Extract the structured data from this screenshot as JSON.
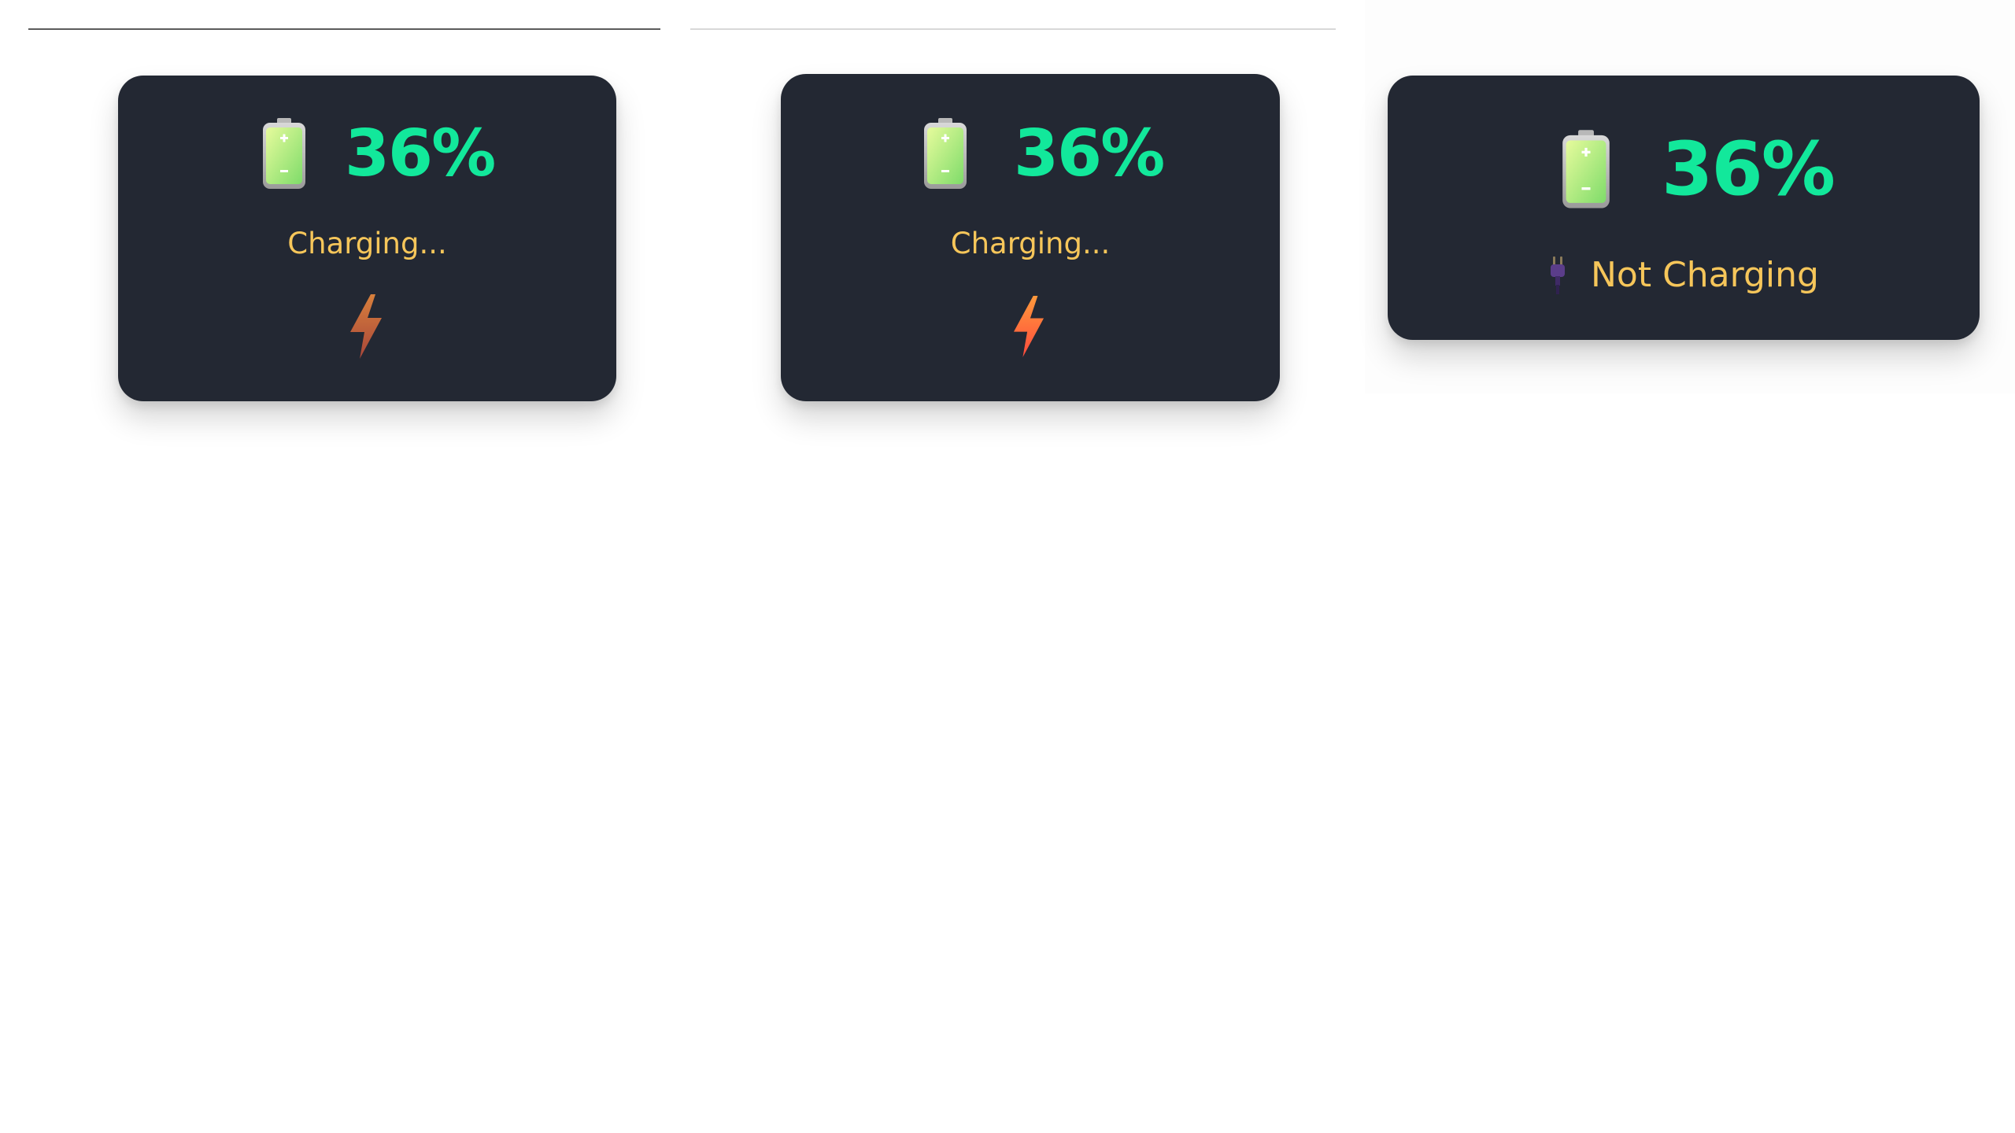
{
  "widgets": [
    {
      "percent": "36%",
      "status": "Charging...",
      "battery_icon": "battery-icon",
      "state_icon": "lightning-bolt-icon"
    },
    {
      "percent": "36%",
      "status": "Charging...",
      "battery_icon": "battery-icon",
      "state_icon": "lightning-bolt-icon"
    },
    {
      "percent": "36%",
      "status": "Not Charging",
      "battery_icon": "battery-icon",
      "state_icon": "plug-icon"
    }
  ],
  "colors": {
    "card_background": "#232833",
    "percent_text": "#12e89b",
    "status_text": "#f6c65a",
    "battery_fill": "#b6f07a",
    "bolt": "#ff7a3d",
    "bolt_dim": "#c7663a",
    "plug": "#5b3d8a"
  }
}
